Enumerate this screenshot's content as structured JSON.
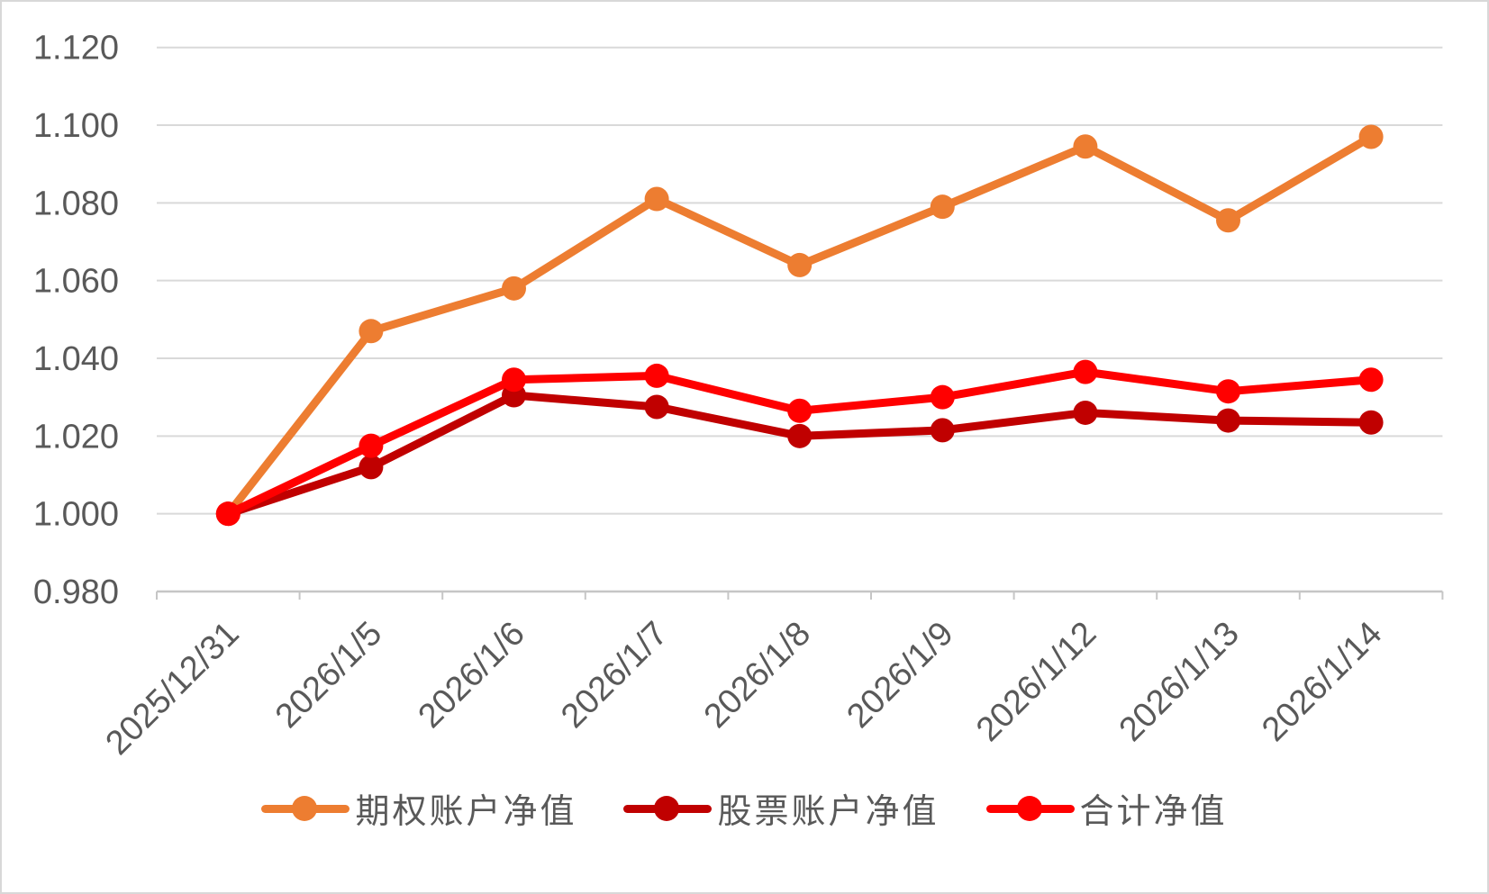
{
  "chart_data": {
    "type": "line",
    "title": "",
    "xlabel": "",
    "ylabel": "",
    "categories": [
      "2025/12/31",
      "2026/1/5",
      "2026/1/6",
      "2026/1/7",
      "2026/1/8",
      "2026/1/9",
      "2026/1/12",
      "2026/1/13",
      "2026/1/14"
    ],
    "series": [
      {
        "name": "期权账户净值",
        "color": "#ED7D31",
        "values": [
          1.0,
          1.047,
          1.058,
          1.081,
          1.064,
          1.079,
          1.0945,
          1.0755,
          1.097
        ]
      },
      {
        "name": "股票账户净值",
        "color": "#C00000",
        "values": [
          1.0,
          1.012,
          1.0305,
          1.0275,
          1.02,
          1.0215,
          1.026,
          1.024,
          1.0235
        ]
      },
      {
        "name": "合计净值",
        "color": "#FF0000",
        "values": [
          1.0,
          1.0175,
          1.0345,
          1.0355,
          1.0265,
          1.03,
          1.0365,
          1.0315,
          1.0345
        ]
      }
    ],
    "y_tick_labels": [
      "0.980",
      "1.000",
      "1.020",
      "1.040",
      "1.060",
      "1.080",
      "1.100",
      "1.120"
    ],
    "ylim": [
      0.98,
      1.12
    ],
    "y_step": 0.02,
    "grid": true,
    "legend_position": "bottom",
    "colors": {
      "gridline": "#D9D9D9",
      "axis_line": "#C6C6C6",
      "tick_text": "#595959",
      "card_border": "#D8D8D8"
    }
  }
}
